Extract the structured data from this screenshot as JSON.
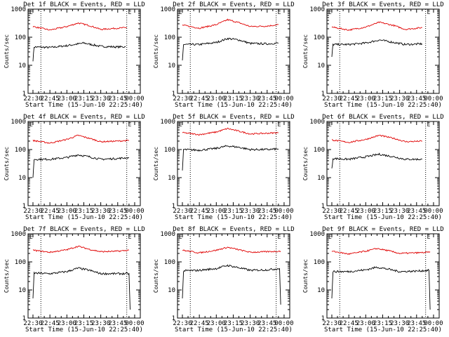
{
  "figure": {
    "background": "#ffffff",
    "event_color": "#000000",
    "lld_color": "#e00000"
  },
  "chart_data": [
    {
      "type": "line",
      "title": "Det 1f BLACK = Events, RED = LLD",
      "xlabel": "Start Time (15-Jun-10 22:25:40)",
      "ylabel": "Counts/sec",
      "y_scale": "log",
      "ylim": [
        1,
        1000
      ],
      "yticks": [
        "1",
        "10",
        "100",
        "1000"
      ],
      "xticks": [
        "22:30",
        "22:45",
        "23:00",
        "23:15",
        "23:30",
        "23:45",
        "00:00"
      ],
      "markers": [
        "22:37",
        "23:53"
      ],
      "corner_label": "E",
      "series": [
        {
          "name": "Events",
          "color": "#000000",
          "points": [
            [
              "22:30",
              15
            ],
            [
              "22:31",
              45
            ],
            [
              "22:45",
              43
            ],
            [
              "23:00",
              50
            ],
            [
              "23:15",
              62
            ],
            [
              "23:30",
              47
            ],
            [
              "23:45",
              45
            ],
            [
              "23:52",
              46
            ]
          ]
        },
        {
          "name": "LLD",
          "color": "#e00000",
          "points": [
            [
              "22:30",
              240
            ],
            [
              "22:45",
              180
            ],
            [
              "23:00",
              240
            ],
            [
              "23:10",
              320
            ],
            [
              "23:20",
              260
            ],
            [
              "23:30",
              190
            ],
            [
              "23:45",
              210
            ],
            [
              "23:53",
              220
            ]
          ]
        }
      ]
    },
    {
      "type": "line",
      "title": "Det 2f BLACK = Events, RED = LLD",
      "xlabel": "Start Time (15-Jun-10 22:25:40)",
      "ylabel": "Counts/sec",
      "y_scale": "log",
      "ylim": [
        1,
        1000
      ],
      "yticks": [
        "1",
        "10",
        "100",
        "1000"
      ],
      "xticks": [
        "22:30",
        "22:45",
        "23:00",
        "23:15",
        "23:30",
        "23:45",
        "00:00"
      ],
      "markers": [
        "22:37",
        "23:53"
      ],
      "corner_label": "E",
      "series": [
        {
          "name": "Events",
          "color": "#000000",
          "points": [
            [
              "22:30",
              15
            ],
            [
              "22:31",
              55
            ],
            [
              "22:45",
              55
            ],
            [
              "23:00",
              65
            ],
            [
              "23:10",
              90
            ],
            [
              "23:20",
              80
            ],
            [
              "23:30",
              60
            ],
            [
              "23:45",
              58
            ],
            [
              "23:55",
              62
            ]
          ]
        },
        {
          "name": "LLD",
          "color": "#e00000",
          "points": [
            [
              "22:30",
              270
            ],
            [
              "22:45",
              210
            ],
            [
              "23:00",
              280
            ],
            [
              "23:10",
              420
            ],
            [
              "23:20",
              330
            ],
            [
              "23:30",
              240
            ],
            [
              "23:45",
              250
            ],
            [
              "23:55",
              280
            ]
          ]
        }
      ]
    },
    {
      "type": "line",
      "title": "Det 3f BLACK = Events, RED = LLD",
      "xlabel": "Start Time (15-Jun-10 22:25:40)",
      "ylabel": "Counts/sec",
      "y_scale": "log",
      "ylim": [
        1,
        1000
      ],
      "yticks": [
        "1",
        "10",
        "100",
        "1000"
      ],
      "xticks": [
        "22:30",
        "22:45",
        "23:00",
        "23:15",
        "23:30",
        "23:45",
        "00:00"
      ],
      "markers": [
        "22:37",
        "23:53"
      ],
      "corner_label": "E",
      "series": [
        {
          "name": "Events",
          "color": "#000000",
          "points": [
            [
              "22:30",
              20
            ],
            [
              "22:31",
              55
            ],
            [
              "22:45",
              55
            ],
            [
              "23:00",
              62
            ],
            [
              "23:12",
              80
            ],
            [
              "23:25",
              65
            ],
            [
              "23:35",
              55
            ],
            [
              "23:50",
              58
            ]
          ]
        },
        {
          "name": "LLD",
          "color": "#e00000",
          "points": [
            [
              "22:30",
              230
            ],
            [
              "22:45",
              180
            ],
            [
              "23:00",
              230
            ],
            [
              "23:12",
              340
            ],
            [
              "23:25",
              260
            ],
            [
              "23:35",
              190
            ],
            [
              "23:50",
              220
            ]
          ]
        }
      ]
    },
    {
      "type": "line",
      "title": "Det 4f BLACK = Events, RED = LLD",
      "xlabel": "Start Time (15-Jun-10 22:25:40)",
      "ylabel": "Counts/sec",
      "y_scale": "log",
      "ylim": [
        1,
        1000
      ],
      "yticks": [
        "1",
        "10",
        "100",
        "1000"
      ],
      "xticks": [
        "22:30",
        "22:45",
        "23:00",
        "23:15",
        "23:30",
        "23:45",
        "00:00"
      ],
      "markers": [
        "22:37",
        "23:53"
      ],
      "corner_label": "E",
      "series": [
        {
          "name": "Events",
          "color": "#000000",
          "points": [
            [
              "22:30",
              10
            ],
            [
              "22:31",
              45
            ],
            [
              "22:45",
              45
            ],
            [
              "23:00",
              52
            ],
            [
              "23:10",
              65
            ],
            [
              "23:20",
              55
            ],
            [
              "23:30",
              45
            ],
            [
              "23:45",
              48
            ],
            [
              "23:55",
              52
            ]
          ]
        },
        {
          "name": "LLD",
          "color": "#e00000",
          "points": [
            [
              "22:30",
              210
            ],
            [
              "22:45",
              170
            ],
            [
              "23:00",
              230
            ],
            [
              "23:10",
              320
            ],
            [
              "23:20",
              250
            ],
            [
              "23:30",
              190
            ],
            [
              "23:45",
              200
            ],
            [
              "23:55",
              210
            ]
          ]
        }
      ]
    },
    {
      "type": "line",
      "title": "Det 5f BLACK = Events, RED = LLD",
      "xlabel": "Start Time (15-Jun-10 22:25:40)",
      "ylabel": "Counts/sec",
      "y_scale": "log",
      "ylim": [
        1,
        1000
      ],
      "yticks": [
        "1",
        "10",
        "100",
        "1000"
      ],
      "xticks": [
        "22:30",
        "22:45",
        "23:00",
        "23:15",
        "23:30",
        "23:45",
        "00:00"
      ],
      "markers": [
        "22:37",
        "23:53"
      ],
      "corner_label": "E",
      "series": [
        {
          "name": "Events",
          "color": "#000000",
          "points": [
            [
              "22:30",
              18
            ],
            [
              "22:31",
              100
            ],
            [
              "22:45",
              95
            ],
            [
              "23:00",
              110
            ],
            [
              "23:10",
              135
            ],
            [
              "23:20",
              120
            ],
            [
              "23:30",
              100
            ],
            [
              "23:45",
              100
            ],
            [
              "23:55",
              105
            ]
          ]
        },
        {
          "name": "LLD",
          "color": "#e00000",
          "points": [
            [
              "22:30",
              400
            ],
            [
              "22:45",
              340
            ],
            [
              "23:00",
              420
            ],
            [
              "23:10",
              560
            ],
            [
              "23:20",
              450
            ],
            [
              "23:30",
              360
            ],
            [
              "23:45",
              380
            ],
            [
              "23:55",
              400
            ]
          ]
        }
      ]
    },
    {
      "type": "line",
      "title": "Det 6f BLACK = Events, RED = LLD",
      "xlabel": "Start Time (15-Jun-10 22:25:40)",
      "ylabel": "Counts/sec",
      "y_scale": "log",
      "ylim": [
        1,
        1000
      ],
      "yticks": [
        "1",
        "10",
        "100",
        "1000"
      ],
      "xticks": [
        "22:30",
        "22:45",
        "23:00",
        "23:15",
        "23:30",
        "23:45",
        "00:00"
      ],
      "markers": [
        "22:37",
        "23:53"
      ],
      "corner_label": "E",
      "series": [
        {
          "name": "Events",
          "color": "#000000",
          "points": [
            [
              "22:30",
              20
            ],
            [
              "22:31",
              48
            ],
            [
              "22:45",
              45
            ],
            [
              "23:00",
              55
            ],
            [
              "23:12",
              68
            ],
            [
              "23:25",
              55
            ],
            [
              "23:35",
              45
            ],
            [
              "23:50",
              45
            ]
          ]
        },
        {
          "name": "LLD",
          "color": "#e00000",
          "points": [
            [
              "22:30",
              220
            ],
            [
              "22:45",
              180
            ],
            [
              "23:00",
              230
            ],
            [
              "23:12",
              320
            ],
            [
              "23:25",
              250
            ],
            [
              "23:35",
              190
            ],
            [
              "23:50",
              200
            ]
          ]
        }
      ]
    },
    {
      "type": "line",
      "title": "Det 7f BLACK = Events, RED = LLD",
      "xlabel": "Start Time (15-Jun-10 22:25:40)",
      "ylabel": "Counts/sec",
      "y_scale": "log",
      "ylim": [
        1,
        1000
      ],
      "yticks": [
        "1",
        "10",
        "100",
        "1000"
      ],
      "xticks": [
        "22:30",
        "22:45",
        "23:00",
        "23:15",
        "23:30",
        "23:45",
        "00:00"
      ],
      "markers": [
        "22:37",
        "23:53"
      ],
      "corner_label": "E",
      "series": [
        {
          "name": "Events",
          "color": "#000000",
          "points": [
            [
              "22:30",
              5
            ],
            [
              "22:31",
              40
            ],
            [
              "22:45",
              38
            ],
            [
              "23:00",
              45
            ],
            [
              "23:10",
              60
            ],
            [
              "23:20",
              50
            ],
            [
              "23:30",
              38
            ],
            [
              "23:45",
              38
            ],
            [
              "23:55",
              38
            ],
            [
              "23:56",
              2
            ]
          ]
        },
        {
          "name": "LLD",
          "color": "#e00000",
          "points": [
            [
              "22:30",
              260
            ],
            [
              "22:45",
              220
            ],
            [
              "23:00",
              270
            ],
            [
              "23:10",
              360
            ],
            [
              "23:20",
              280
            ],
            [
              "23:30",
              230
            ],
            [
              "23:45",
              240
            ],
            [
              "23:55",
              260
            ]
          ]
        }
      ]
    },
    {
      "type": "line",
      "title": "Det 8f BLACK = Events, RED = LLD",
      "xlabel": "Start Time (15-Jun-10 22:25:40)",
      "ylabel": "Counts/sec",
      "y_scale": "log",
      "ylim": [
        1,
        1000
      ],
      "yticks": [
        "1",
        "10",
        "100",
        "1000"
      ],
      "xticks": [
        "22:30",
        "22:45",
        "23:00",
        "23:15",
        "23:30",
        "23:45",
        "00:00"
      ],
      "markers": [
        "22:37",
        "23:53"
      ],
      "corner_label": "E",
      "series": [
        {
          "name": "Events",
          "color": "#000000",
          "points": [
            [
              "22:30",
              5
            ],
            [
              "22:31",
              48
            ],
            [
              "22:45",
              50
            ],
            [
              "23:00",
              58
            ],
            [
              "23:10",
              75
            ],
            [
              "23:20",
              62
            ],
            [
              "23:30",
              50
            ],
            [
              "23:45",
              52
            ],
            [
              "23:56",
              58
            ],
            [
              "23:57",
              3
            ]
          ]
        },
        {
          "name": "LLD",
          "color": "#e00000",
          "points": [
            [
              "22:30",
              260
            ],
            [
              "22:45",
              210
            ],
            [
              "23:00",
              260
            ],
            [
              "23:10",
              330
            ],
            [
              "23:20",
              270
            ],
            [
              "23:30",
              220
            ],
            [
              "23:45",
              230
            ],
            [
              "23:57",
              240
            ]
          ]
        }
      ]
    },
    {
      "type": "line",
      "title": "Det 9f BLACK = Events, RED = LLD",
      "xlabel": "Start Time (15-Jun-10 22:25:40)",
      "ylabel": "Counts/sec",
      "y_scale": "log",
      "ylim": [
        1,
        1000
      ],
      "yticks": [
        "1",
        "10",
        "100",
        "1000"
      ],
      "xticks": [
        "22:30",
        "22:45",
        "23:00",
        "23:15",
        "23:30",
        "23:45",
        "00:00"
      ],
      "markers": [
        "22:37",
        "23:53"
      ],
      "corner_label": "E",
      "series": [
        {
          "name": "Events",
          "color": "#000000",
          "points": [
            [
              "22:30",
              5
            ],
            [
              "22:31",
              45
            ],
            [
              "22:45",
              45
            ],
            [
              "23:00",
              52
            ],
            [
              "23:10",
              65
            ],
            [
              "23:20",
              55
            ],
            [
              "23:30",
              45
            ],
            [
              "23:45",
              47
            ],
            [
              "23:56",
              50
            ],
            [
              "23:57",
              2
            ]
          ]
        },
        {
          "name": "LLD",
          "color": "#e00000",
          "points": [
            [
              "22:30",
              240
            ],
            [
              "22:45",
              190
            ],
            [
              "23:00",
              240
            ],
            [
              "23:10",
              300
            ],
            [
              "23:20",
              250
            ],
            [
              "23:30",
              200
            ],
            [
              "23:45",
              210
            ],
            [
              "23:57",
              220
            ]
          ]
        }
      ]
    }
  ]
}
